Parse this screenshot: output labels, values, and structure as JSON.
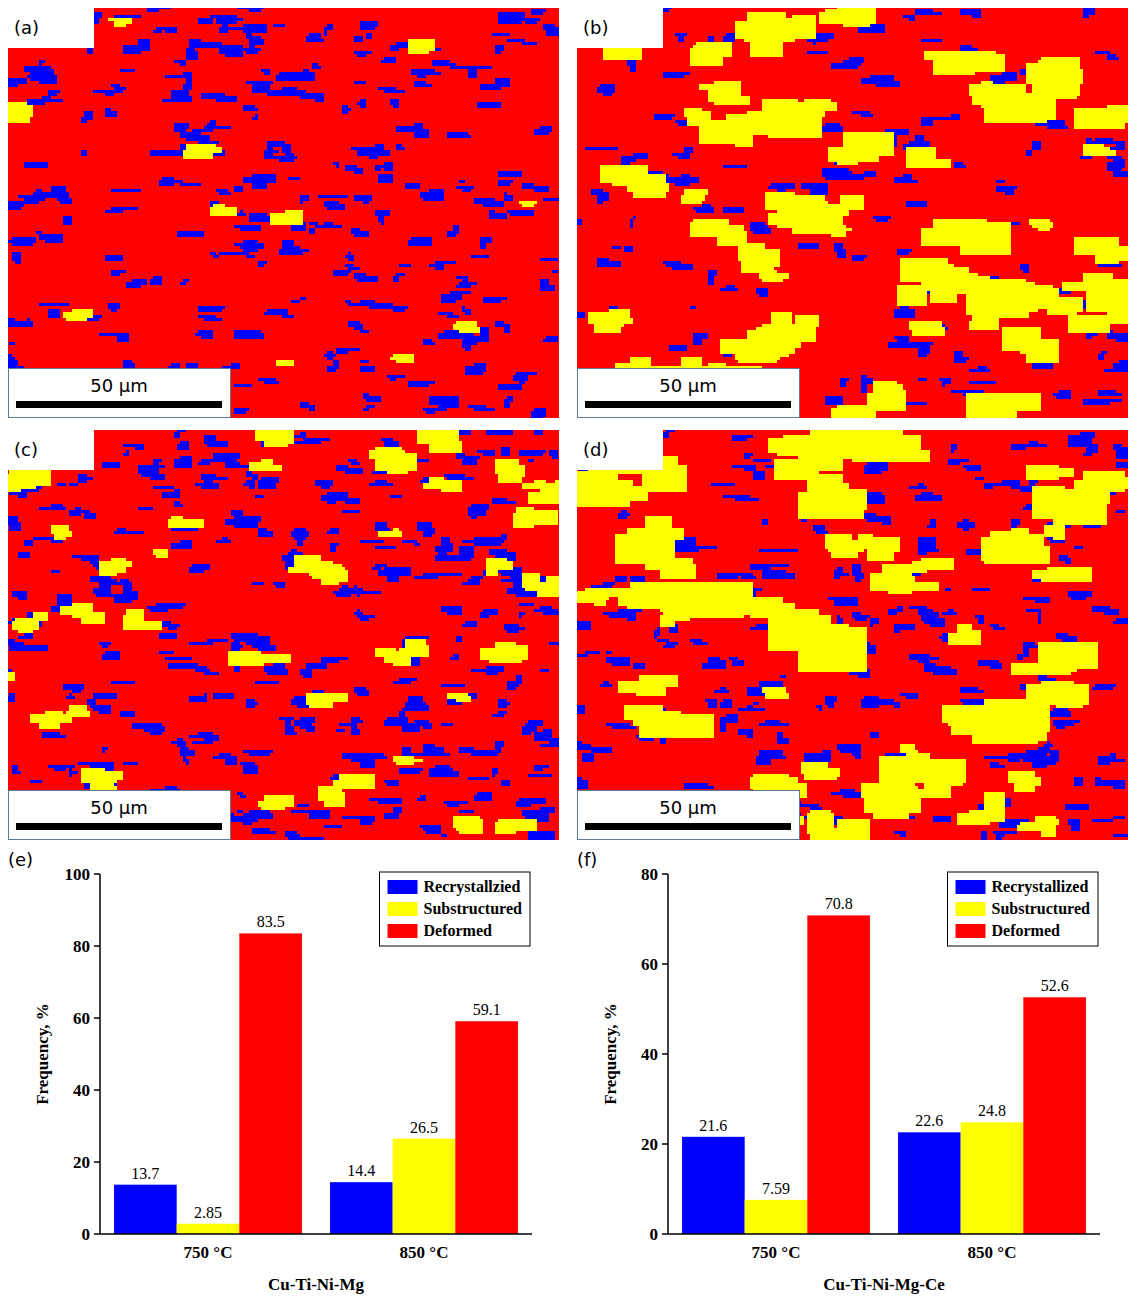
{
  "panels": [
    {
      "label": "(a)",
      "scale_bar": "50 μm"
    },
    {
      "label": "(b)",
      "scale_bar": "50 μm"
    },
    {
      "label": "(c)",
      "scale_bar": "50 μm"
    },
    {
      "label": "(d)",
      "scale_bar": "50 μm"
    }
  ],
  "chart_data": [
    {
      "type": "bar",
      "panel_label": "(e)",
      "xlabel": "Cu-Ti-Ni-Mg",
      "ylabel": "Frequency, %",
      "categories": [
        "750 °C",
        "850 °C"
      ],
      "series": [
        {
          "name": "Recrystallzied",
          "color": "#0000ff",
          "values": [
            13.7,
            14.4
          ]
        },
        {
          "name": "Substructured",
          "color": "#ffff00",
          "values": [
            2.85,
            26.5
          ]
        },
        {
          "name": "Deformed",
          "color": "#ff0000",
          "values": [
            83.5,
            59.1
          ]
        }
      ],
      "ylim": [
        0,
        100
      ],
      "yticks": [
        0,
        20,
        40,
        60,
        80,
        100
      ],
      "legend": "upper right",
      "data_labels": true
    },
    {
      "type": "bar",
      "panel_label": "(f)",
      "xlabel": "Cu-Ti-Ni-Mg-Ce",
      "ylabel": "Frequency, %",
      "categories": [
        "750 °C",
        "850 °C"
      ],
      "series": [
        {
          "name": "Recrystallized",
          "color": "#0000ff",
          "values": [
            21.6,
            22.6
          ]
        },
        {
          "name": "Substructured",
          "color": "#ffff00",
          "values": [
            7.59,
            24.8
          ]
        },
        {
          "name": "Deformed",
          "color": "#ff0000",
          "values": [
            70.8,
            52.6
          ]
        }
      ],
      "ylim": [
        0,
        80
      ],
      "yticks": [
        0,
        20,
        40,
        60,
        80
      ],
      "legend": "upper right",
      "data_labels": true
    }
  ]
}
